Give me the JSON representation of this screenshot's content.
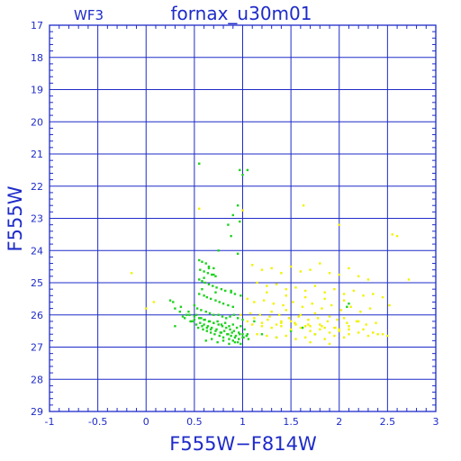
{
  "chart_data": {
    "type": "scatter",
    "title": "fornax_u30m01",
    "chip_label": "WF3",
    "xlabel": "F555W−F814W",
    "ylabel": "F555W",
    "xlim": [
      -1,
      3
    ],
    "ylim": [
      29,
      17
    ],
    "x_ticks": [
      "-1",
      "-0.5",
      "0",
      "0.5",
      "1",
      "1.5",
      "2",
      "2.5",
      "3"
    ],
    "y_ticks": [
      "17",
      "18",
      "19",
      "20",
      "21",
      "22",
      "23",
      "24",
      "25",
      "26",
      "27",
      "28",
      "29"
    ],
    "grid": true,
    "colors": {
      "axes": "#1e2bc8",
      "green": "#1ed21e",
      "yellow": "#f2f200"
    },
    "series": [
      {
        "color": "green",
        "x": [
          0.55,
          0.97,
          1.0,
          1.05,
          0.9,
          0.95,
          0.97,
          0.85,
          0.88,
          0.75,
          0.95,
          0.55,
          0.58,
          0.62,
          0.65,
          0.7,
          0.56,
          0.6,
          0.64,
          0.68,
          0.72,
          0.55,
          0.58,
          0.61,
          0.65,
          0.69,
          0.73,
          0.78,
          0.82,
          0.88,
          0.92,
          0.55,
          0.6,
          0.63,
          0.67,
          0.72,
          0.76,
          0.8,
          0.85,
          0.9,
          0.5,
          0.53,
          0.57,
          0.62,
          0.66,
          0.7,
          0.75,
          0.79,
          0.83,
          0.87,
          0.91,
          0.95,
          1.0,
          0.45,
          0.5,
          0.55,
          0.6,
          0.65,
          0.7,
          0.74,
          0.78,
          0.82,
          0.86,
          0.9,
          0.94,
          0.98,
          1.02,
          0.4,
          0.48,
          0.52,
          0.58,
          0.63,
          0.67,
          0.72,
          0.77,
          0.81,
          0.85,
          0.89,
          0.93,
          0.97,
          1.01,
          1.05,
          0.35,
          0.42,
          0.5,
          0.56,
          0.6,
          0.64,
          0.68,
          0.73,
          0.78,
          0.84,
          0.88,
          0.92,
          0.96,
          1.0,
          1.04,
          0.3,
          0.38,
          0.46,
          0.54,
          0.59,
          0.63,
          0.67,
          0.71,
          0.76,
          0.8,
          0.86,
          0.9,
          0.95,
          0.28,
          0.36,
          0.44,
          0.52,
          0.57,
          0.61,
          0.66,
          0.7,
          0.75,
          0.79,
          0.83,
          0.87,
          0.91,
          0.96,
          1.0,
          0.62,
          0.68,
          0.74,
          0.8,
          0.86,
          0.92,
          0.98,
          1.06,
          1.2,
          1.35,
          1.5,
          1.62,
          1.75,
          2.1,
          2.08,
          0.58,
          0.72,
          0.88,
          0.98,
          1.12,
          0.3,
          0.25,
          0.6,
          0.7,
          0.65
        ],
        "y": [
          21.3,
          21.5,
          21.65,
          21.5,
          22.9,
          22.6,
          23.1,
          23.2,
          23.55,
          24.0,
          24.1,
          24.3,
          24.35,
          24.4,
          24.5,
          24.55,
          24.6,
          24.65,
          24.7,
          24.75,
          24.8,
          24.9,
          24.95,
          25.0,
          25.05,
          25.1,
          25.15,
          25.2,
          25.25,
          25.3,
          25.35,
          25.35,
          25.4,
          25.45,
          25.5,
          25.55,
          25.6,
          25.65,
          25.7,
          25.75,
          25.7,
          25.8,
          25.85,
          25.9,
          25.95,
          26.0,
          26.0,
          26.05,
          26.1,
          26.05,
          26.0,
          26.1,
          26.15,
          26.0,
          26.05,
          26.1,
          26.15,
          26.2,
          26.25,
          26.2,
          26.3,
          26.25,
          26.35,
          26.3,
          26.4,
          26.35,
          26.45,
          26.1,
          26.2,
          26.3,
          26.35,
          26.4,
          26.45,
          26.5,
          26.55,
          26.5,
          26.6,
          26.55,
          26.65,
          26.6,
          26.7,
          26.6,
          25.9,
          26.0,
          26.15,
          26.25,
          26.3,
          26.35,
          26.4,
          26.45,
          26.55,
          26.6,
          26.65,
          26.7,
          26.75,
          26.7,
          26.65,
          25.8,
          26.05,
          26.2,
          26.4,
          26.45,
          26.5,
          26.55,
          26.6,
          26.65,
          26.7,
          26.75,
          26.8,
          26.85,
          25.6,
          25.75,
          25.9,
          26.0,
          26.1,
          26.15,
          26.2,
          26.25,
          26.3,
          26.35,
          26.4,
          26.45,
          26.5,
          26.55,
          26.6,
          26.8,
          26.75,
          26.85,
          26.8,
          26.9,
          26.85,
          26.9,
          26.75,
          26.6,
          26.7,
          26.5,
          26.4,
          26.6,
          25.65,
          25.75,
          25.2,
          25.3,
          25.25,
          25.4,
          26.2,
          26.35,
          25.55,
          24.85,
          24.75,
          24.55
        ]
      },
      {
        "color": "yellow",
        "x": [
          0.55,
          1.0,
          1.63,
          2.0,
          2.55,
          2.6,
          -0.15,
          2.72,
          2.52,
          0.08,
          0.0,
          1.1,
          1.2,
          1.3,
          1.4,
          1.5,
          1.6,
          1.7,
          1.8,
          1.9,
          2.0,
          2.1,
          2.2,
          2.3,
          1.15,
          1.25,
          1.35,
          1.45,
          1.55,
          1.65,
          1.75,
          1.85,
          1.95,
          2.05,
          2.15,
          2.25,
          2.35,
          2.45,
          1.05,
          1.12,
          1.22,
          1.32,
          1.42,
          1.52,
          1.62,
          1.72,
          1.82,
          1.92,
          2.02,
          2.12,
          2.22,
          2.32,
          1.08,
          1.18,
          1.28,
          1.38,
          1.48,
          1.58,
          1.68,
          1.78,
          1.88,
          1.98,
          2.08,
          2.18,
          2.28,
          2.38,
          1.1,
          1.2,
          1.3,
          1.4,
          1.5,
          1.6,
          1.7,
          1.8,
          1.9,
          2.0,
          2.1,
          2.2,
          2.3,
          2.4,
          1.15,
          1.25,
          1.35,
          1.45,
          1.55,
          1.65,
          1.75,
          1.85,
          1.95,
          2.05,
          1.3,
          1.45,
          1.6,
          1.75,
          1.9,
          2.05,
          2.2,
          1.4,
          1.55,
          1.7,
          1.85,
          2.0,
          1.05,
          1.2,
          1.35,
          1.5,
          1.65,
          1.8,
          1.95,
          2.1,
          2.25,
          0.98,
          1.12,
          1.26,
          1.4,
          1.54,
          1.68,
          1.82,
          1.96,
          2.1,
          2.35,
          2.45,
          2.5,
          1.25,
          1.45,
          1.65,
          1.85,
          2.05,
          1.7,
          1.9
        ],
        "y": [
          22.7,
          22.75,
          22.6,
          23.2,
          23.5,
          23.55,
          24.7,
          24.9,
          25.7,
          25.6,
          25.8,
          24.45,
          24.6,
          24.55,
          24.7,
          24.5,
          24.65,
          24.6,
          24.4,
          24.7,
          24.75,
          24.55,
          24.8,
          24.9,
          25.0,
          25.1,
          25.05,
          25.2,
          25.15,
          25.25,
          25.1,
          25.3,
          25.2,
          25.35,
          25.25,
          25.4,
          25.35,
          25.45,
          25.5,
          25.6,
          25.55,
          25.65,
          25.7,
          25.6,
          25.75,
          25.65,
          25.8,
          25.7,
          25.85,
          25.75,
          25.9,
          25.8,
          25.95,
          26.0,
          26.05,
          26.0,
          26.1,
          26.05,
          26.15,
          26.1,
          26.2,
          26.15,
          26.25,
          26.2,
          26.3,
          26.25,
          26.3,
          26.35,
          26.4,
          26.35,
          26.45,
          26.4,
          26.5,
          26.45,
          26.55,
          26.5,
          26.6,
          26.55,
          26.65,
          26.6,
          26.6,
          26.65,
          26.7,
          26.65,
          26.75,
          26.7,
          26.6,
          26.75,
          26.65,
          26.7,
          25.9,
          25.85,
          26.0,
          25.95,
          26.05,
          26.1,
          26.2,
          26.25,
          26.3,
          26.35,
          26.4,
          26.45,
          26.2,
          26.25,
          26.3,
          26.2,
          26.35,
          26.3,
          26.4,
          26.35,
          26.45,
          26.0,
          26.1,
          26.15,
          26.2,
          26.25,
          26.3,
          26.35,
          26.4,
          26.45,
          26.55,
          26.6,
          26.65,
          25.3,
          25.4,
          25.45,
          25.5,
          25.55,
          26.85,
          26.9
        ]
      }
    ]
  }
}
